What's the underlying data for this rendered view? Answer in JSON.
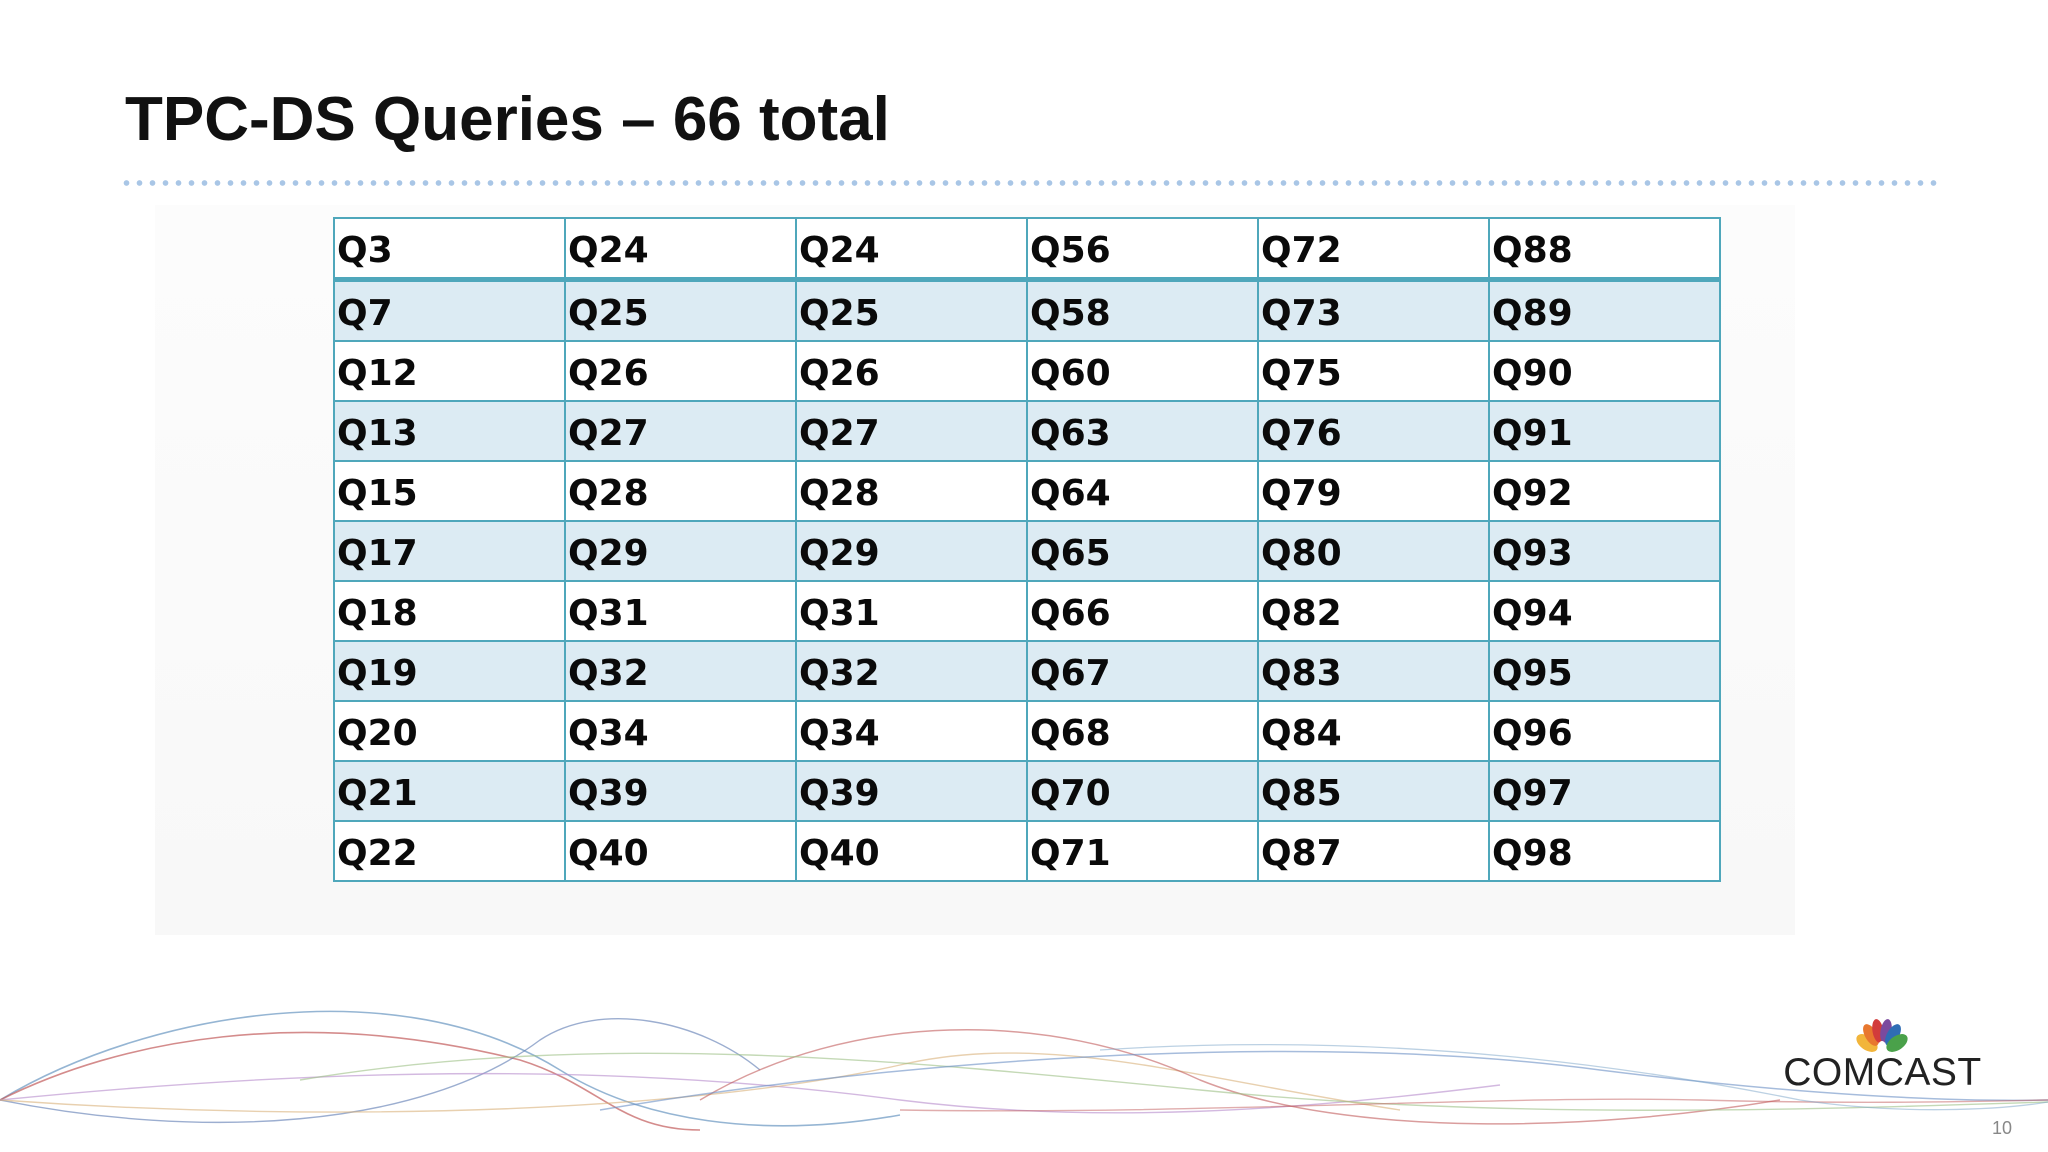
{
  "title": "TPC-DS Queries – 66 total",
  "queries": {
    "rows": [
      [
        "Q3",
        "Q24",
        "Q24",
        "Q56",
        "Q72",
        "Q88"
      ],
      [
        "Q7",
        "Q25",
        "Q25",
        "Q58",
        "Q73",
        "Q89"
      ],
      [
        "Q12",
        "Q26",
        "Q26",
        "Q60",
        "Q75",
        "Q90"
      ],
      [
        "Q13",
        "Q27",
        "Q27",
        "Q63",
        "Q76",
        "Q91"
      ],
      [
        "Q15",
        "Q28",
        "Q28",
        "Q64",
        "Q79",
        "Q92"
      ],
      [
        "Q17",
        "Q29",
        "Q29",
        "Q65",
        "Q80",
        "Q93"
      ],
      [
        "Q18",
        "Q31",
        "Q31",
        "Q66",
        "Q82",
        "Q94"
      ],
      [
        "Q19",
        "Q32",
        "Q32",
        "Q67",
        "Q83",
        "Q95"
      ],
      [
        "Q20",
        "Q34",
        "Q34",
        "Q68",
        "Q84",
        "Q96"
      ],
      [
        "Q21",
        "Q39",
        "Q39",
        "Q70",
        "Q85",
        "Q97"
      ],
      [
        "Q22",
        "Q40",
        "Q40",
        "Q71",
        "Q87",
        "Q98"
      ]
    ]
  },
  "logo": {
    "text": "COMCAST",
    "icon": "peacock-logo-icon"
  },
  "page_number": "10",
  "colors": {
    "table_border": "#4fa7bb",
    "row_band": "#dcebf3",
    "rule_dots": "#a9c6e6"
  }
}
